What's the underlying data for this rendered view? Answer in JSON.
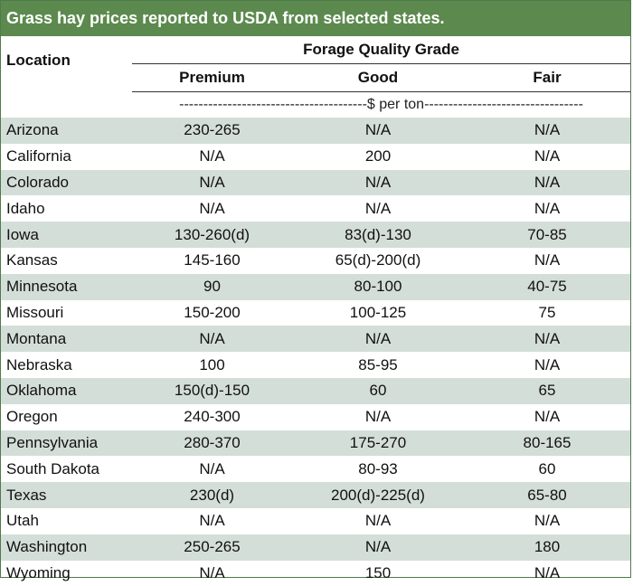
{
  "title": "Grass hay prices reported to USDA from selected states.",
  "header": {
    "group_label": "Forage Quality Grade",
    "location_label": "Location",
    "grades": [
      "Premium",
      "Good",
      "Fair"
    ],
    "unit_line": "---------------------------------------$ per ton---------------------------------"
  },
  "rows": [
    {
      "location": "Arizona",
      "premium": "230-265",
      "good": "N/A",
      "fair": "N/A"
    },
    {
      "location": "California",
      "premium": "N/A",
      "good": "200",
      "fair": "N/A"
    },
    {
      "location": "Colorado",
      "premium": "N/A",
      "good": "N/A",
      "fair": "N/A"
    },
    {
      "location": "Idaho",
      "premium": "N/A",
      "good": "N/A",
      "fair": "N/A"
    },
    {
      "location": "Iowa",
      "premium": "130-260(d)",
      "good": "83(d)-130",
      "fair": "70-85"
    },
    {
      "location": "Kansas",
      "premium": "145-160",
      "good": "65(d)-200(d)",
      "fair": "N/A"
    },
    {
      "location": "Minnesota",
      "premium": "90",
      "good": "80-100",
      "fair": "40-75"
    },
    {
      "location": "Missouri",
      "premium": "150-200",
      "good": "100-125",
      "fair": "75"
    },
    {
      "location": "Montana",
      "premium": "N/A",
      "good": "N/A",
      "fair": "N/A"
    },
    {
      "location": "Nebraska",
      "premium": "100",
      "good": "85-95",
      "fair": "N/A"
    },
    {
      "location": "Oklahoma",
      "premium": "150(d)-150",
      "good": "60",
      "fair": "65"
    },
    {
      "location": "Oregon",
      "premium": "240-300",
      "good": "N/A",
      "fair": "N/A"
    },
    {
      "location": "Pennsylvania",
      "premium": "280-370",
      "good": "175-270",
      "fair": "80-165"
    },
    {
      "location": "South Dakota",
      "premium": "N/A",
      "good": "80-93",
      "fair": "60"
    },
    {
      "location": "Texas",
      "premium": "230(d)",
      "good": "200(d)-225(d)",
      "fair": "65-80"
    },
    {
      "location": "Utah",
      "premium": "N/A",
      "good": "N/A",
      "fair": "N/A"
    },
    {
      "location": "Washington",
      "premium": "250-265",
      "good": "N/A",
      "fair": "180"
    },
    {
      "location": "Wyoming",
      "premium": "N/A",
      "good": "150",
      "fair": "N/A"
    }
  ],
  "colors": {
    "title_bar": "#5c8a4e",
    "row_shade": "#d4ded9",
    "border": "#4f7a4a"
  }
}
